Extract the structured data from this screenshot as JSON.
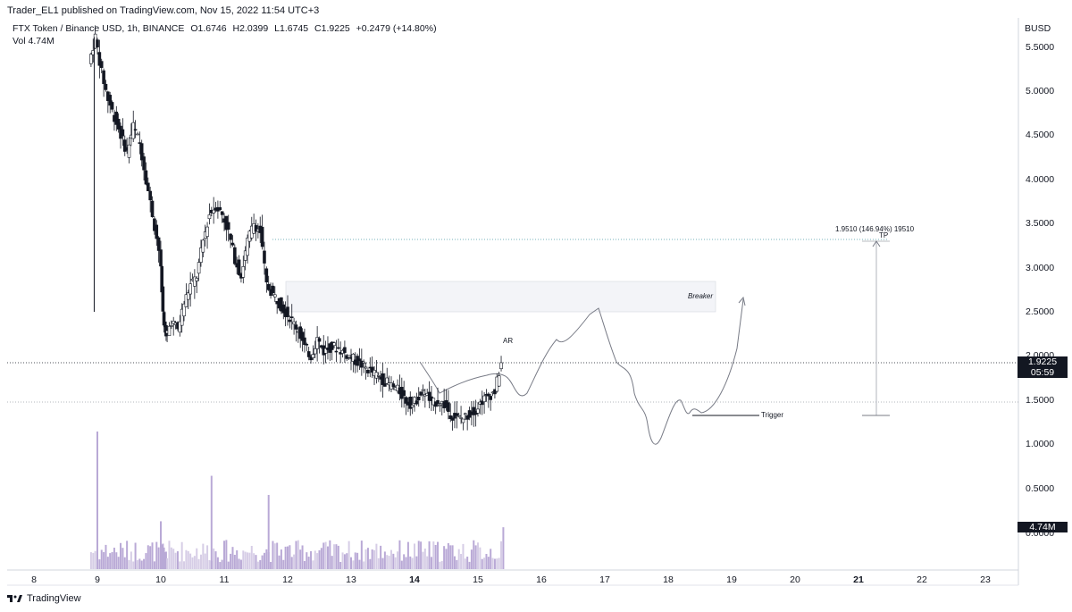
{
  "header": {
    "published": "Trader_EL1 published on TradingView.com, Nov 15, 2022 11:54 UTC+3",
    "symbol": "FTX Token / Binance USD, 1h, BINANCE",
    "open": "O1.6746",
    "high": "H2.0399",
    "low": "L1.6745",
    "close": "C1.9225",
    "change": "+0.2479 (+14.80%)",
    "vol_label": "Vol",
    "vol_value": "4.74M"
  },
  "price_axis": {
    "currency": "BUSD",
    "ticks": [
      "5.5000",
      "5.0000",
      "4.5000",
      "4.0000",
      "3.5000",
      "3.0000",
      "2.5000",
      "2.0000",
      "1.5000",
      "1.0000",
      "0.5000",
      "0.0000"
    ],
    "last_price": "1.9225",
    "countdown": "05:59",
    "volume_tag": "4.74M"
  },
  "time_axis": {
    "ticks": [
      "8",
      "9",
      "10",
      "11",
      "12",
      "13",
      "14",
      "15",
      "16",
      "17",
      "18",
      "19",
      "20",
      "21",
      "22",
      "23"
    ],
    "bold": [
      "14",
      "21"
    ]
  },
  "annotations": {
    "tp_measure": "1.9510 (146.94%) 19510",
    "tp_label": "TP",
    "breaker_label": "Breaker",
    "ar_label": "AR",
    "trigger_label": "Trigger"
  },
  "chart_data": {
    "type": "candlestick",
    "x_axis": "Nov 2022 (days)",
    "y_range": [
      0.0,
      5.6
    ],
    "close_path": [
      [
        8.9,
        5.3
      ],
      [
        9.0,
        5.6
      ],
      [
        9.1,
        5.2
      ],
      [
        9.2,
        4.9
      ],
      [
        9.3,
        4.7
      ],
      [
        9.4,
        4.5
      ],
      [
        9.5,
        4.3
      ],
      [
        9.6,
        4.6
      ],
      [
        9.7,
        4.4
      ],
      [
        9.8,
        4.0
      ],
      [
        9.9,
        3.6
      ],
      [
        10.0,
        3.2
      ],
      [
        10.05,
        2.5
      ],
      [
        10.1,
        2.2
      ],
      [
        10.2,
        2.4
      ],
      [
        10.3,
        2.3
      ],
      [
        10.4,
        2.6
      ],
      [
        10.5,
        2.8
      ],
      [
        10.6,
        2.9
      ],
      [
        10.7,
        3.3
      ],
      [
        10.8,
        3.6
      ],
      [
        10.9,
        3.7
      ],
      [
        11.0,
        3.6
      ],
      [
        11.1,
        3.4
      ],
      [
        11.2,
        3.1
      ],
      [
        11.3,
        2.9
      ],
      [
        11.4,
        3.3
      ],
      [
        11.5,
        3.5
      ],
      [
        11.6,
        3.4
      ],
      [
        11.7,
        2.8
      ],
      [
        11.8,
        2.7
      ],
      [
        11.9,
        2.6
      ],
      [
        12.0,
        2.5
      ],
      [
        12.1,
        2.4
      ],
      [
        12.2,
        2.3
      ],
      [
        12.3,
        2.1
      ],
      [
        12.4,
        2.0
      ],
      [
        12.5,
        2.2
      ],
      [
        12.6,
        2.05
      ],
      [
        12.7,
        2.1
      ],
      [
        12.8,
        2.1
      ],
      [
        12.9,
        2.05
      ],
      [
        13.0,
        2.0
      ],
      [
        13.1,
        1.95
      ],
      [
        13.2,
        1.9
      ],
      [
        13.3,
        1.85
      ],
      [
        13.4,
        1.8
      ],
      [
        13.5,
        1.75
      ],
      [
        13.6,
        1.7
      ],
      [
        13.7,
        1.65
      ],
      [
        13.8,
        1.6
      ],
      [
        13.9,
        1.5
      ],
      [
        14.0,
        1.45
      ],
      [
        14.1,
        1.55
      ],
      [
        14.2,
        1.6
      ],
      [
        14.3,
        1.45
      ],
      [
        14.4,
        1.5
      ],
      [
        14.5,
        1.45
      ],
      [
        14.6,
        1.35
      ],
      [
        14.7,
        1.3
      ],
      [
        14.8,
        1.3
      ],
      [
        14.9,
        1.35
      ],
      [
        15.0,
        1.4
      ],
      [
        15.1,
        1.5
      ],
      [
        15.2,
        1.55
      ],
      [
        15.3,
        1.6
      ],
      [
        15.4,
        1.9225
      ]
    ],
    "volume_spikes": [
      [
        9.0,
        1.15
      ],
      [
        10.0,
        0.4
      ],
      [
        10.8,
        0.78
      ],
      [
        11.7,
        0.62
      ],
      [
        15.4,
        0.35
      ]
    ]
  }
}
